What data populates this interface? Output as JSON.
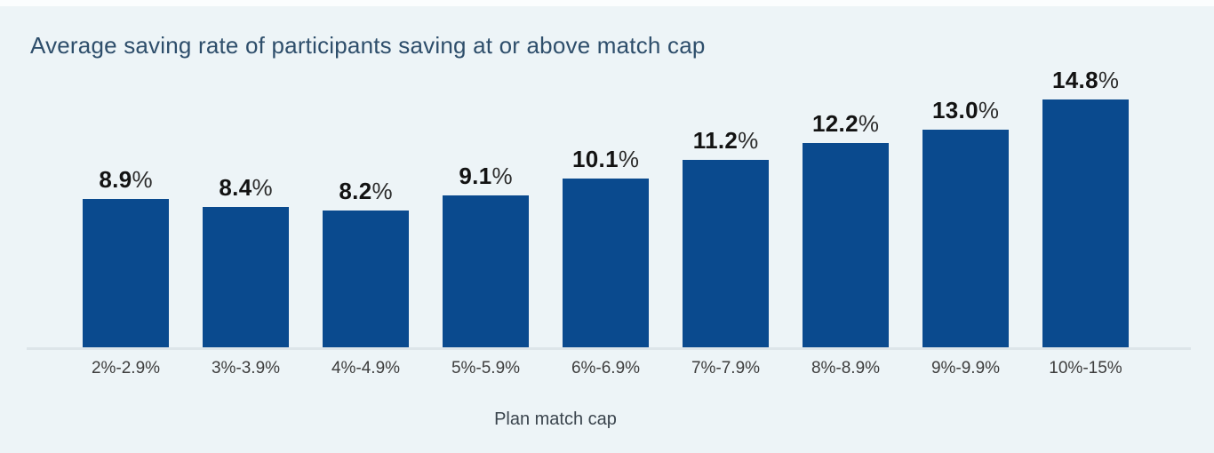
{
  "chart_data": {
    "type": "bar",
    "title": "Average saving rate of participants saving at or above match cap",
    "xlabel": "Plan match cap",
    "ylabel": "",
    "ylim": [
      0,
      15
    ],
    "grid": "off",
    "legend_position": "none",
    "categories": [
      "2%-2.9%",
      "3%-3.9%",
      "4%-4.9%",
      "5%-5.9%",
      "6%-6.9%",
      "7%-7.9%",
      "8%-8.9%",
      "9%-9.9%",
      "10%-15%"
    ],
    "values": [
      8.9,
      8.4,
      8.2,
      9.1,
      10.1,
      11.2,
      12.2,
      13.0,
      14.8
    ],
    "display_values": [
      "8.9",
      "8.4",
      "8.2",
      "9.1",
      "10.1",
      "11.2",
      "12.2",
      "13.0",
      "14.8"
    ],
    "percent_symbol": "%",
    "bar_color": "#0a4a8e",
    "background_color": "#edf4f7",
    "axis_line_color": "#dde5e9",
    "title_color": "#2e4e6b"
  }
}
